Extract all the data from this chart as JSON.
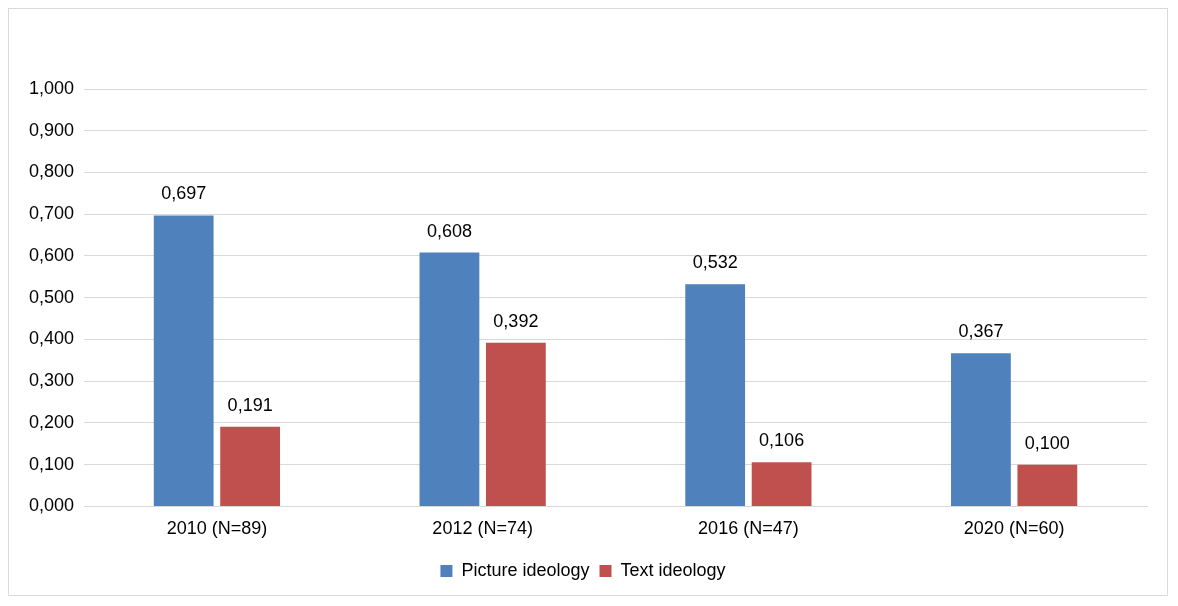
{
  "chart_data": {
    "type": "bar",
    "categories": [
      "2010 (N=89)",
      "2012 (N=74)",
      "2016 (N=47)",
      "2020 (N=60)"
    ],
    "series": [
      {
        "name": "Picture ideology",
        "color": "#4f81bd",
        "values": [
          0.697,
          0.608,
          0.532,
          0.367
        ],
        "value_labels": [
          "0,697",
          "0,608",
          "0,532",
          "0,367"
        ]
      },
      {
        "name": "Text ideology",
        "color": "#c0504d",
        "values": [
          0.191,
          0.392,
          0.106,
          0.1
        ],
        "value_labels": [
          "0,191",
          "0,392",
          "0,106",
          "0,100"
        ]
      }
    ],
    "ylim": [
      0,
      1
    ],
    "yticks": [
      {
        "value": 0,
        "label": "0,000"
      },
      {
        "value": 0.1,
        "label": "0,100"
      },
      {
        "value": 0.2,
        "label": "0,200"
      },
      {
        "value": 0.3,
        "label": "0,300"
      },
      {
        "value": 0.4,
        "label": "0,400"
      },
      {
        "value": 0.5,
        "label": "0,500"
      },
      {
        "value": 0.6,
        "label": "0,600"
      },
      {
        "value": 0.7,
        "label": "0,700"
      },
      {
        "value": 0.8,
        "label": "0,800"
      },
      {
        "value": 0.9,
        "label": "0,900"
      },
      {
        "value": 1,
        "label": "1,000"
      }
    ],
    "grid": "y",
    "legend": "bottom"
  }
}
